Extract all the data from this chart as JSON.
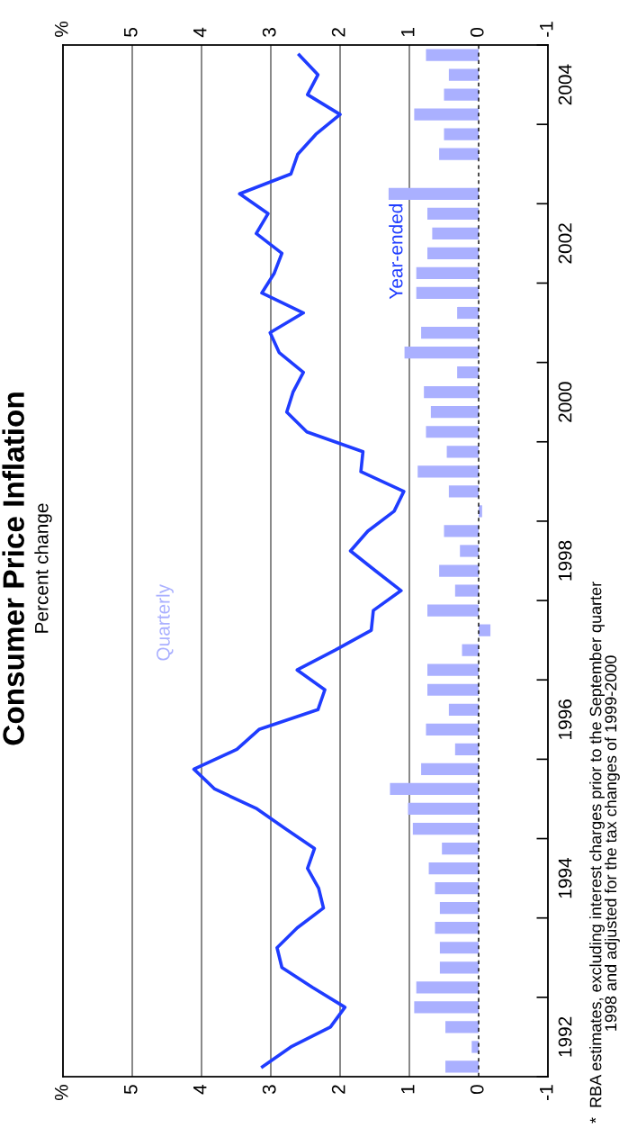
{
  "chart_data": {
    "type": "bar",
    "orientation": "horizontal",
    "title": "Consumer Price Inflation",
    "subtitle": "Percent change",
    "annotations": [
      "*  RBA estimates, excluding interest charges prior to the September quarter\n    1998 and adjusted for the tax changes of 1999-2000"
    ],
    "xlim": [
      6,
      -1
    ],
    "xticks": [
      {
        "value": 6,
        "label": "%"
      },
      5,
      4,
      3,
      2,
      1,
      0,
      -1
    ],
    "x2lim": [
      6,
      -1
    ],
    "x2ticks": [
      {
        "value": 6,
        "label": "%"
      },
      5,
      4,
      3,
      2,
      1,
      0,
      -1
    ],
    "ylim": [
      1992,
      2005
    ],
    "yticks": [
      {
        "value": 1992,
        "label": null
      },
      {
        "value": 1993,
        "label": null
      },
      {
        "value": 1994,
        "label": null
      },
      {
        "value": 1995,
        "label": null
      },
      {
        "value": 1996,
        "label": null
      },
      {
        "value": 1997,
        "label": null
      },
      {
        "value": 1998,
        "label": null
      },
      {
        "value": 1999,
        "label": null
      },
      {
        "value": 2000,
        "label": null
      },
      {
        "value": 2001,
        "label": null
      },
      {
        "value": 2002,
        "label": null
      },
      {
        "value": 2003,
        "label": null
      },
      {
        "value": 2004,
        "label": null
      },
      {
        "value": 2005,
        "label": null
      },
      {
        "value": 1992.5,
        "label": "1992"
      },
      {
        "value": 1994.5,
        "label": "1994"
      },
      {
        "value": 1996.5,
        "label": "1996"
      },
      {
        "value": 1998.5,
        "label": "1998"
      },
      {
        "value": 2000.5,
        "label": "2000"
      },
      {
        "value": 2002.5,
        "label": "2002"
      },
      {
        "value": 2004.5,
        "label": "2004"
      }
    ],
    "grid": "x",
    "ref_lines": [
      {
        "axis": "x",
        "value": 0,
        "label": null,
        "color": "#000000",
        "line_style": "dashed"
      }
    ],
    "x": [
      1992.125,
      1992.375,
      1992.625,
      1992.875,
      1993.125,
      1993.375,
      1993.625,
      1993.875,
      1994.125,
      1994.375,
      1994.625,
      1994.875,
      1995.125,
      1995.375,
      1995.625,
      1995.875,
      1996.125,
      1996.375,
      1996.625,
      1996.875,
      1997.125,
      1997.375,
      1997.625,
      1997.875,
      1998.125,
      1998.375,
      1998.625,
      1998.875,
      1999.125,
      1999.375,
      1999.625,
      1999.875,
      2000.125,
      2000.375,
      2000.625,
      2000.875,
      2001.125,
      2001.375,
      2001.625,
      2001.875,
      2002.125,
      2002.375,
      2002.625,
      2002.875,
      2003.125,
      2003.375,
      2003.625,
      2003.875,
      2004.125,
      2004.375,
      2004.625,
      2004.875
    ],
    "series": [
      {
        "name": "Quarterly",
        "color": "#aab0ff",
        "values": [
          0.48,
          0.1,
          0.48,
          0.93,
          0.9,
          0.56,
          0.56,
          0.63,
          0.56,
          0.63,
          0.72,
          0.53,
          0.95,
          1.02,
          1.28,
          0.83,
          0.34,
          0.76,
          0.43,
          0.74,
          0.74,
          0.24,
          -0.17,
          0.74,
          0.34,
          0.57,
          0.27,
          0.5,
          -0.05,
          0.43,
          0.88,
          0.46,
          0.76,
          0.69,
          0.79,
          0.31,
          1.07,
          0.83,
          0.31,
          0.9,
          0.9,
          0.74,
          0.67,
          0.74,
          1.3,
          0.0,
          0.57,
          0.5,
          0.93,
          0.5,
          0.43,
          0.76
        ]
      },
      {
        "name": "Year-ended",
        "type": "line",
        "color": "#1f3cff",
        "values": [
          3.12,
          2.71,
          2.14,
          1.93,
          2.4,
          2.84,
          2.91,
          2.62,
          2.24,
          2.31,
          2.47,
          2.37,
          2.79,
          3.2,
          3.81,
          4.11,
          3.49,
          3.17,
          2.32,
          2.22,
          2.62,
          2.07,
          1.55,
          1.52,
          1.12,
          1.49,
          1.85,
          1.6,
          1.22,
          1.08,
          1.7,
          1.67,
          2.48,
          2.77,
          2.68,
          2.53,
          2.88,
          3.01,
          2.53,
          3.13,
          2.95,
          2.84,
          3.21,
          3.04,
          3.45,
          2.71,
          2.61,
          2.35,
          2.0,
          2.47,
          2.32,
          2.59
        ]
      }
    ]
  }
}
